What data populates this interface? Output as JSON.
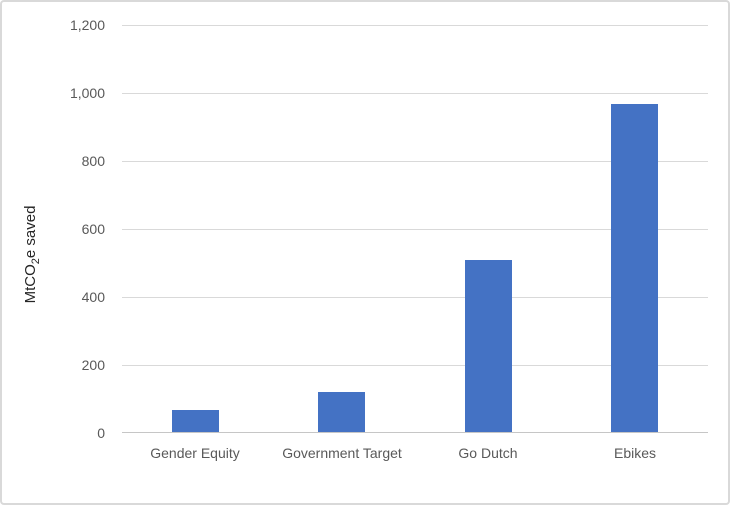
{
  "chart_data": {
    "type": "bar",
    "title": "",
    "xlabel": "",
    "ylabel": "MtCO2e saved",
    "ylabel_parts": {
      "pre": "MtCO",
      "sub": "2",
      "post": "e saved"
    },
    "categories": [
      "Gender Equity",
      "Government Target",
      "Go Dutch",
      "Ebikes"
    ],
    "values": [
      65,
      117,
      505,
      965
    ],
    "ylim": [
      0,
      1200
    ],
    "yticks": [
      0,
      200,
      400,
      600,
      800,
      1000,
      1200
    ],
    "ytick_labels": [
      "0",
      "200",
      "400",
      "600",
      "800",
      "1,000",
      "1,200"
    ],
    "grid": true,
    "legend": false,
    "colors": {
      "bar": "#4472C4",
      "gridline": "#D9D9D9",
      "axis_line": "#C6C6C6",
      "tick_label": "#595959",
      "category_label": "#595959",
      "axis_title": "#262626",
      "background": "#FFFFFF",
      "frame_border": "#D9D9D9"
    }
  }
}
